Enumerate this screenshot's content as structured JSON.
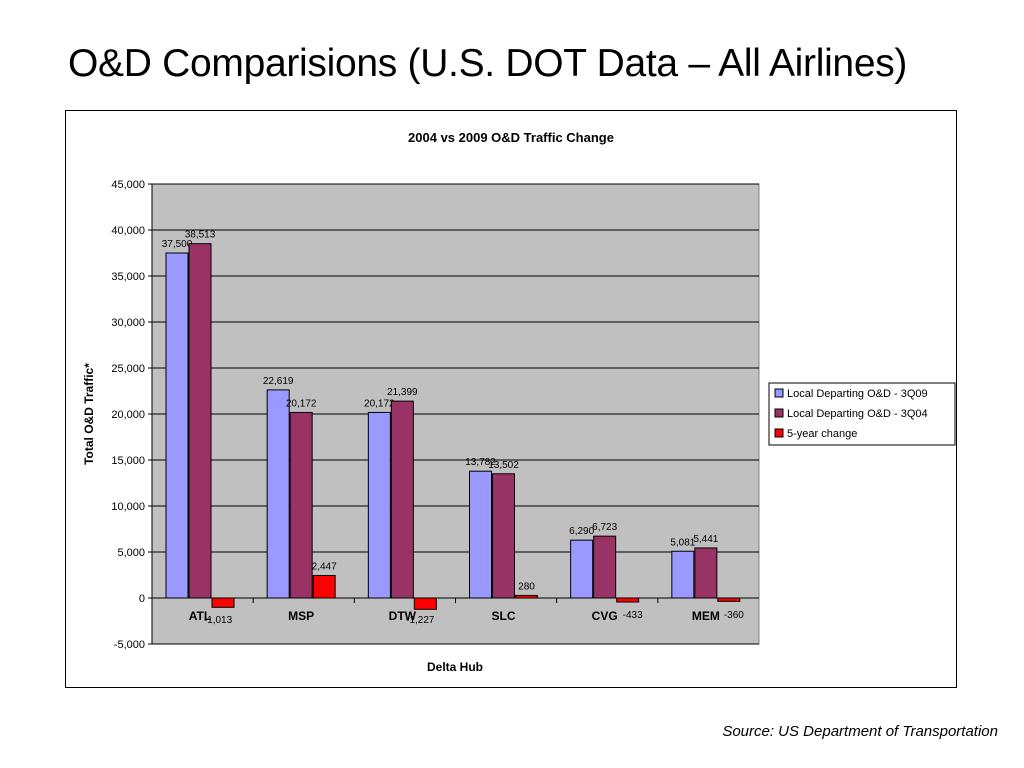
{
  "slide": {
    "title": "O&D Comparisions (U.S. DOT Data – All Airlines)",
    "source": "Source: US Department of Transportation"
  },
  "colors": {
    "plot_bg": "#c0c0c0",
    "series": [
      "#9999ff",
      "#993366",
      "#ff0000"
    ]
  },
  "chart_data": {
    "type": "bar",
    "title": "2004 vs 2009 O&D Traffic Change",
    "xlabel": "Delta Hub",
    "ylabel": "Total O&D Traffic*",
    "ylim": [
      -5000,
      45000
    ],
    "ytick_step": 5000,
    "grid": true,
    "legend_position": "right",
    "categories": [
      "ATL",
      "MSP",
      "DTW",
      "SLC",
      "CVG",
      "MEM"
    ],
    "series": [
      {
        "name": "Local Departing O&D - 3Q09",
        "values": [
          37500,
          22619,
          20172,
          13782,
          6290,
          5081
        ]
      },
      {
        "name": "Local Departing O&D - 3Q04",
        "values": [
          38513,
          20172,
          21399,
          13502,
          6723,
          5441
        ]
      },
      {
        "name": "5-year change",
        "values": [
          -1013,
          2447,
          -1227,
          280,
          -433,
          -360
        ]
      }
    ]
  }
}
